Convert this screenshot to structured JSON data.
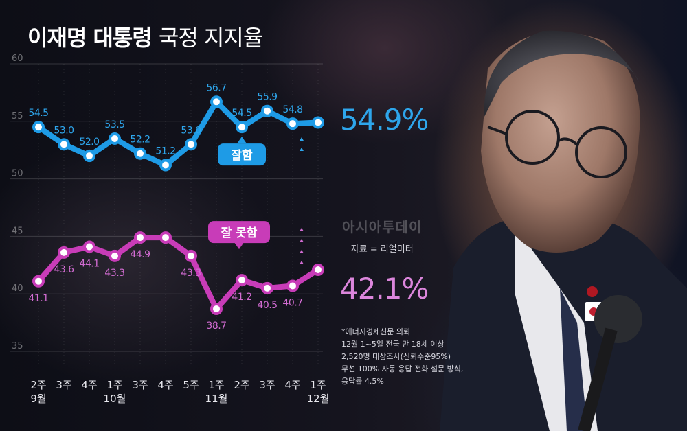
{
  "title": {
    "bold": "이재명 대통령",
    "light": "국정 지지율"
  },
  "colors": {
    "good": "#1e9be6",
    "bad": "#c83cb8",
    "good_text": "#2ea6ec",
    "bad_text": "#d26cd2"
  },
  "chart_data": {
    "type": "line",
    "ylim": [
      35,
      60
    ],
    "yticks": [
      "60",
      "55",
      "50",
      "45",
      "40",
      "35"
    ],
    "categories": [
      {
        "week": "2주",
        "month": "9월"
      },
      {
        "week": "3주",
        "month": ""
      },
      {
        "week": "4주",
        "month": ""
      },
      {
        "week": "1주",
        "month": "10월"
      },
      {
        "week": "3주",
        "month": ""
      },
      {
        "week": "4주",
        "month": ""
      },
      {
        "week": "5주",
        "month": ""
      },
      {
        "week": "1주",
        "month": "11월"
      },
      {
        "week": "2주",
        "month": ""
      },
      {
        "week": "3주",
        "month": ""
      },
      {
        "week": "4주",
        "month": ""
      },
      {
        "week": "1주",
        "month": "12월"
      }
    ],
    "series": [
      {
        "name": "잘함",
        "values": [
          54.5,
          53.0,
          52.0,
          53.5,
          52.2,
          51.2,
          53.0,
          56.7,
          54.5,
          55.9,
          54.8,
          54.9
        ],
        "labels": [
          "54.5",
          "53.0",
          "52.0",
          "53.5",
          "52.2",
          "51.2",
          "53.0",
          "56.7",
          "54.5",
          "55.9",
          "54.8",
          ""
        ]
      },
      {
        "name": "잘 못함",
        "values": [
          41.1,
          43.6,
          44.1,
          43.3,
          44.9,
          44.9,
          43.3,
          38.7,
          41.2,
          40.5,
          40.7,
          42.1
        ],
        "labels": [
          "41.1",
          "43.6",
          "44.1",
          "43.3",
          "44.9",
          "",
          "43.3",
          "38.7",
          "41.2",
          "40.5",
          "40.7",
          ""
        ]
      }
    ]
  },
  "latest": {
    "good": "54.9%",
    "bad": "42.1%"
  },
  "source": {
    "title": "아시아투데이",
    "label": "자료 = 리얼미터"
  },
  "notes": [
    "*에너지경제신문 의뢰",
    "12월 1~5일 전국 만 18세 이상",
    "2,520명 대상조사(신뢰수준95%)",
    "무선 100% 자동 응답 전화 설문 방식,",
    "응답률 4.5%"
  ]
}
